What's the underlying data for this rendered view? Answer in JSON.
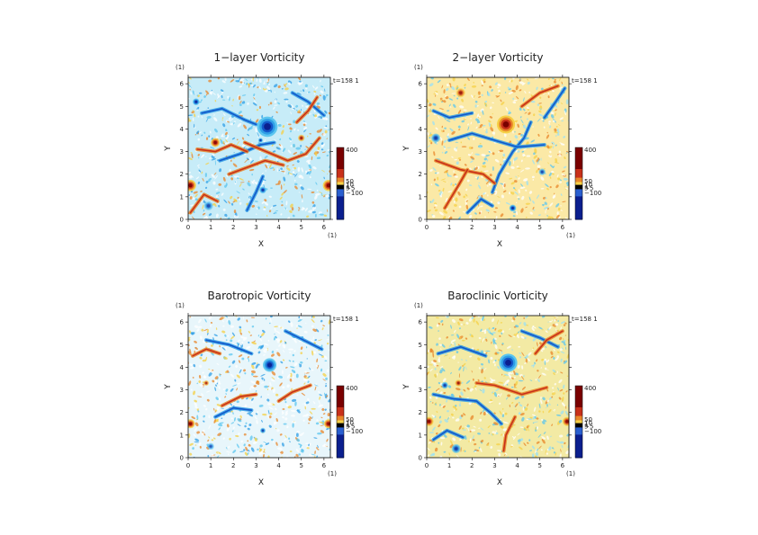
{
  "page": {
    "domain": "Chart"
  },
  "chart_data": [
    {
      "type": "heatmap",
      "title": "1−layer Vorticity",
      "xlabel": "X",
      "ylabel": "Y",
      "x_unit": "(1)",
      "y_unit": "(1)",
      "time_label": "t=158 1",
      "xlim": [
        0,
        6.2832
      ],
      "ylim": [
        0,
        6.2832
      ],
      "x_ticks": [
        "0",
        "1",
        "2",
        "3",
        "4",
        "5",
        "6"
      ],
      "y_ticks": [
        "0",
        "1",
        "2",
        "3",
        "4",
        "5",
        "6"
      ],
      "colorbar": {
        "labels": [
          "400",
          "50",
          "10",
          "5",
          "1",
          "−5",
          "−100"
        ],
        "colors": [
          "#7a0000",
          "#c8301a",
          "#e8862a",
          "#f6d046",
          "#000000",
          "#2a5fd0",
          "#0b1f8f"
        ]
      },
      "features": {
        "background": "#c7ecf8",
        "vortices": [
          {
            "x": 3.5,
            "y": 4.1,
            "r": 0.45,
            "sign": -1,
            "strength": 1.0
          },
          {
            "x": 0.35,
            "y": 5.2,
            "r": 0.15,
            "sign": -1,
            "strength": 0.8
          },
          {
            "x": 3.2,
            "y": 3.5,
            "r": 0.1,
            "sign": -1,
            "strength": 0.7
          },
          {
            "x": 3.3,
            "y": 1.3,
            "r": 0.15,
            "sign": -1,
            "strength": 0.7
          },
          {
            "x": 0.1,
            "y": 1.5,
            "r": 0.25,
            "sign": 1,
            "strength": 0.9
          },
          {
            "x": 6.2,
            "y": 1.5,
            "r": 0.25,
            "sign": 1,
            "strength": 0.9
          },
          {
            "x": 1.2,
            "y": 3.4,
            "r": 0.2,
            "sign": 1,
            "strength": 0.8
          },
          {
            "x": 5.0,
            "y": 3.6,
            "r": 0.15,
            "sign": 1,
            "strength": 0.6
          },
          {
            "x": 0.9,
            "y": 0.6,
            "r": 0.2,
            "sign": -1,
            "strength": 0.5
          }
        ],
        "positive_filaments": [
          [
            [
              2.5,
              3.4
            ],
            [
              3.2,
              3.1
            ],
            [
              4.4,
              2.6
            ],
            [
              5.2,
              2.9
            ],
            [
              5.8,
              3.6
            ]
          ],
          [
            [
              1.8,
              2.0
            ],
            [
              2.6,
              2.3
            ],
            [
              3.4,
              2.6
            ],
            [
              4.2,
              2.4
            ]
          ],
          [
            [
              0.4,
              3.1
            ],
            [
              1.2,
              3.0
            ],
            [
              1.9,
              3.3
            ],
            [
              2.6,
              3.0
            ]
          ],
          [
            [
              4.8,
              4.3
            ],
            [
              5.3,
              4.8
            ],
            [
              5.7,
              5.4
            ]
          ],
          [
            [
              0.1,
              0.3
            ],
            [
              0.7,
              1.1
            ],
            [
              1.3,
              0.8
            ]
          ]
        ],
        "negative_filaments": [
          [
            [
              0.6,
              4.7
            ],
            [
              1.5,
              4.9
            ],
            [
              2.5,
              4.4
            ],
            [
              3.0,
              4.2
            ]
          ],
          [
            [
              1.4,
              2.6
            ],
            [
              2.3,
              2.9
            ],
            [
              3.2,
              3.3
            ],
            [
              3.8,
              3.4
            ]
          ],
          [
            [
              2.6,
              0.4
            ],
            [
              3.0,
              1.2
            ],
            [
              3.3,
              1.9
            ]
          ],
          [
            [
              4.6,
              5.6
            ],
            [
              5.3,
              5.2
            ],
            [
              6.0,
              4.6
            ]
          ]
        ]
      }
    },
    {
      "type": "heatmap",
      "title": "2−layer Vorticity",
      "xlabel": "X",
      "ylabel": "Y",
      "x_unit": "(1)",
      "y_unit": "(1)",
      "time_label": "t=158 1",
      "xlim": [
        0,
        6.2832
      ],
      "ylim": [
        0,
        6.2832
      ],
      "x_ticks": [
        "0",
        "1",
        "2",
        "3",
        "4",
        "5",
        "6"
      ],
      "y_ticks": [
        "0",
        "1",
        "2",
        "3",
        "4",
        "5",
        "6"
      ],
      "colorbar": {
        "labels": [
          "400",
          "50",
          "10",
          "5",
          "1",
          "−5",
          "−100"
        ],
        "colors": [
          "#7a0000",
          "#c8301a",
          "#e8862a",
          "#f6d046",
          "#000000",
          "#2a5fd0",
          "#0b1f8f"
        ]
      },
      "features": {
        "background": "#fbe9a6",
        "vortices": [
          {
            "x": 3.5,
            "y": 4.2,
            "r": 0.4,
            "sign": 1,
            "strength": 1.0
          },
          {
            "x": 3.8,
            "y": 0.5,
            "r": 0.15,
            "sign": -1,
            "strength": 0.8
          },
          {
            "x": 0.4,
            "y": 3.6,
            "r": 0.2,
            "sign": -1,
            "strength": 0.6
          },
          {
            "x": 5.1,
            "y": 2.1,
            "r": 0.15,
            "sign": -1,
            "strength": 0.5
          },
          {
            "x": 1.5,
            "y": 5.6,
            "r": 0.2,
            "sign": 1,
            "strength": 0.6
          }
        ],
        "positive_filaments": [
          [
            [
              0.4,
              2.6
            ],
            [
              1.5,
              2.2
            ],
            [
              2.5,
              2.0
            ],
            [
              3.0,
              1.6
            ]
          ],
          [
            [
              0.8,
              0.5
            ],
            [
              1.4,
              1.5
            ],
            [
              1.8,
              2.2
            ]
          ],
          [
            [
              4.2,
              5.0
            ],
            [
              5.0,
              5.6
            ],
            [
              5.8,
              5.9
            ]
          ]
        ],
        "negative_filaments": [
          [
            [
              2.9,
              1.2
            ],
            [
              3.2,
              2.0
            ],
            [
              3.8,
              3.0
            ],
            [
              4.3,
              3.6
            ],
            [
              4.6,
              4.3
            ]
          ],
          [
            [
              1.0,
              3.5
            ],
            [
              2.0,
              3.8
            ],
            [
              3.0,
              3.5
            ],
            [
              4.0,
              3.2
            ],
            [
              5.2,
              3.3
            ]
          ],
          [
            [
              0.3,
              4.8
            ],
            [
              1.0,
              4.5
            ],
            [
              2.0,
              4.7
            ]
          ],
          [
            [
              5.2,
              4.5
            ],
            [
              5.7,
              5.2
            ],
            [
              6.1,
              5.8
            ]
          ],
          [
            [
              1.8,
              0.3
            ],
            [
              2.4,
              0.9
            ],
            [
              2.9,
              0.6
            ]
          ]
        ]
      }
    },
    {
      "type": "heatmap",
      "title": "Barotropic Vorticity",
      "xlabel": "X",
      "ylabel": "Y",
      "x_unit": "(1)",
      "y_unit": "(1)",
      "time_label": "t=158 1",
      "xlim": [
        0,
        6.2832
      ],
      "ylim": [
        0,
        6.2832
      ],
      "x_ticks": [
        "0",
        "1",
        "2",
        "3",
        "4",
        "5",
        "6"
      ],
      "y_ticks": [
        "0",
        "1",
        "2",
        "3",
        "4",
        "5",
        "6"
      ],
      "colorbar": {
        "labels": [
          "400",
          "50",
          "10",
          "5",
          "1",
          "−5",
          "−100"
        ],
        "colors": [
          "#7a0000",
          "#c8301a",
          "#e8862a",
          "#f6d046",
          "#000000",
          "#2a5fd0",
          "#0b1f8f"
        ]
      },
      "features": {
        "background": "#e8f6fb",
        "vortices": [
          {
            "x": 3.6,
            "y": 4.1,
            "r": 0.3,
            "sign": -1,
            "strength": 0.9
          },
          {
            "x": 0.1,
            "y": 1.5,
            "r": 0.2,
            "sign": 1,
            "strength": 0.8
          },
          {
            "x": 6.2,
            "y": 1.5,
            "r": 0.2,
            "sign": 1,
            "strength": 0.8
          },
          {
            "x": 3.3,
            "y": 1.2,
            "r": 0.12,
            "sign": -1,
            "strength": 0.6
          },
          {
            "x": 0.8,
            "y": 3.3,
            "r": 0.12,
            "sign": 1,
            "strength": 0.5
          },
          {
            "x": 1.0,
            "y": 0.5,
            "r": 0.15,
            "sign": -1,
            "strength": 0.4
          }
        ],
        "positive_filaments": [
          [
            [
              1.5,
              2.3
            ],
            [
              2.3,
              2.7
            ],
            [
              3.0,
              2.8
            ]
          ],
          [
            [
              4.0,
              2.5
            ],
            [
              4.6,
              2.9
            ],
            [
              5.4,
              3.2
            ]
          ],
          [
            [
              0.2,
              4.5
            ],
            [
              0.8,
              4.8
            ],
            [
              1.4,
              4.6
            ]
          ]
        ],
        "negative_filaments": [
          [
            [
              0.8,
              5.2
            ],
            [
              1.8,
              5.0
            ],
            [
              2.8,
              4.6
            ]
          ],
          [
            [
              1.2,
              1.8
            ],
            [
              2.0,
              2.2
            ],
            [
              2.8,
              2.1
            ]
          ],
          [
            [
              4.3,
              5.6
            ],
            [
              5.1,
              5.2
            ],
            [
              5.9,
              4.8
            ]
          ]
        ]
      }
    },
    {
      "type": "heatmap",
      "title": "Baroclinic Vorticity",
      "xlabel": "X",
      "ylabel": "Y",
      "x_unit": "(1)",
      "y_unit": "(1)",
      "time_label": "t=158 1",
      "xlim": [
        0,
        6.2832
      ],
      "ylim": [
        0,
        6.2832
      ],
      "x_ticks": [
        "0",
        "1",
        "2",
        "3",
        "4",
        "5",
        "6"
      ],
      "y_ticks": [
        "0",
        "1",
        "2",
        "3",
        "4",
        "5",
        "6"
      ],
      "colorbar": {
        "labels": [
          "400",
          "50",
          "10",
          "5",
          "1",
          "−5",
          "−100"
        ],
        "colors": [
          "#7a0000",
          "#c8301a",
          "#e8862a",
          "#f6d046",
          "#000000",
          "#2a5fd0",
          "#0b1f8f"
        ]
      },
      "features": {
        "background": "#f3eaa4",
        "vortices": [
          {
            "x": 3.6,
            "y": 4.2,
            "r": 0.4,
            "sign": -1,
            "strength": 1.0
          },
          {
            "x": 0.1,
            "y": 1.6,
            "r": 0.2,
            "sign": 1,
            "strength": 0.8
          },
          {
            "x": 6.2,
            "y": 1.6,
            "r": 0.2,
            "sign": 1,
            "strength": 0.8
          },
          {
            "x": 0.8,
            "y": 3.2,
            "r": 0.15,
            "sign": -1,
            "strength": 0.6
          },
          {
            "x": 1.4,
            "y": 3.3,
            "r": 0.15,
            "sign": 1,
            "strength": 0.6
          },
          {
            "x": 1.3,
            "y": 0.4,
            "r": 0.2,
            "sign": -1,
            "strength": 0.6
          }
        ],
        "positive_filaments": [
          [
            [
              2.2,
              3.3
            ],
            [
              3.0,
              3.2
            ],
            [
              4.2,
              2.8
            ],
            [
              5.3,
              3.1
            ]
          ],
          [
            [
              3.4,
              0.3
            ],
            [
              3.5,
              1.0
            ],
            [
              3.9,
              1.8
            ]
          ],
          [
            [
              4.8,
              4.6
            ],
            [
              5.3,
              5.2
            ],
            [
              6.0,
              5.6
            ]
          ]
        ],
        "negative_filaments": [
          [
            [
              0.3,
              2.8
            ],
            [
              1.2,
              2.6
            ],
            [
              2.2,
              2.5
            ],
            [
              2.8,
              2.0
            ],
            [
              3.3,
              1.5
            ]
          ],
          [
            [
              0.5,
              4.6
            ],
            [
              1.5,
              4.9
            ],
            [
              2.6,
              4.5
            ]
          ],
          [
            [
              4.2,
              5.6
            ],
            [
              5.0,
              5.3
            ],
            [
              5.8,
              4.9
            ]
          ],
          [
            [
              0.3,
              0.8
            ],
            [
              0.9,
              1.2
            ],
            [
              1.6,
              0.9
            ]
          ]
        ]
      }
    }
  ]
}
